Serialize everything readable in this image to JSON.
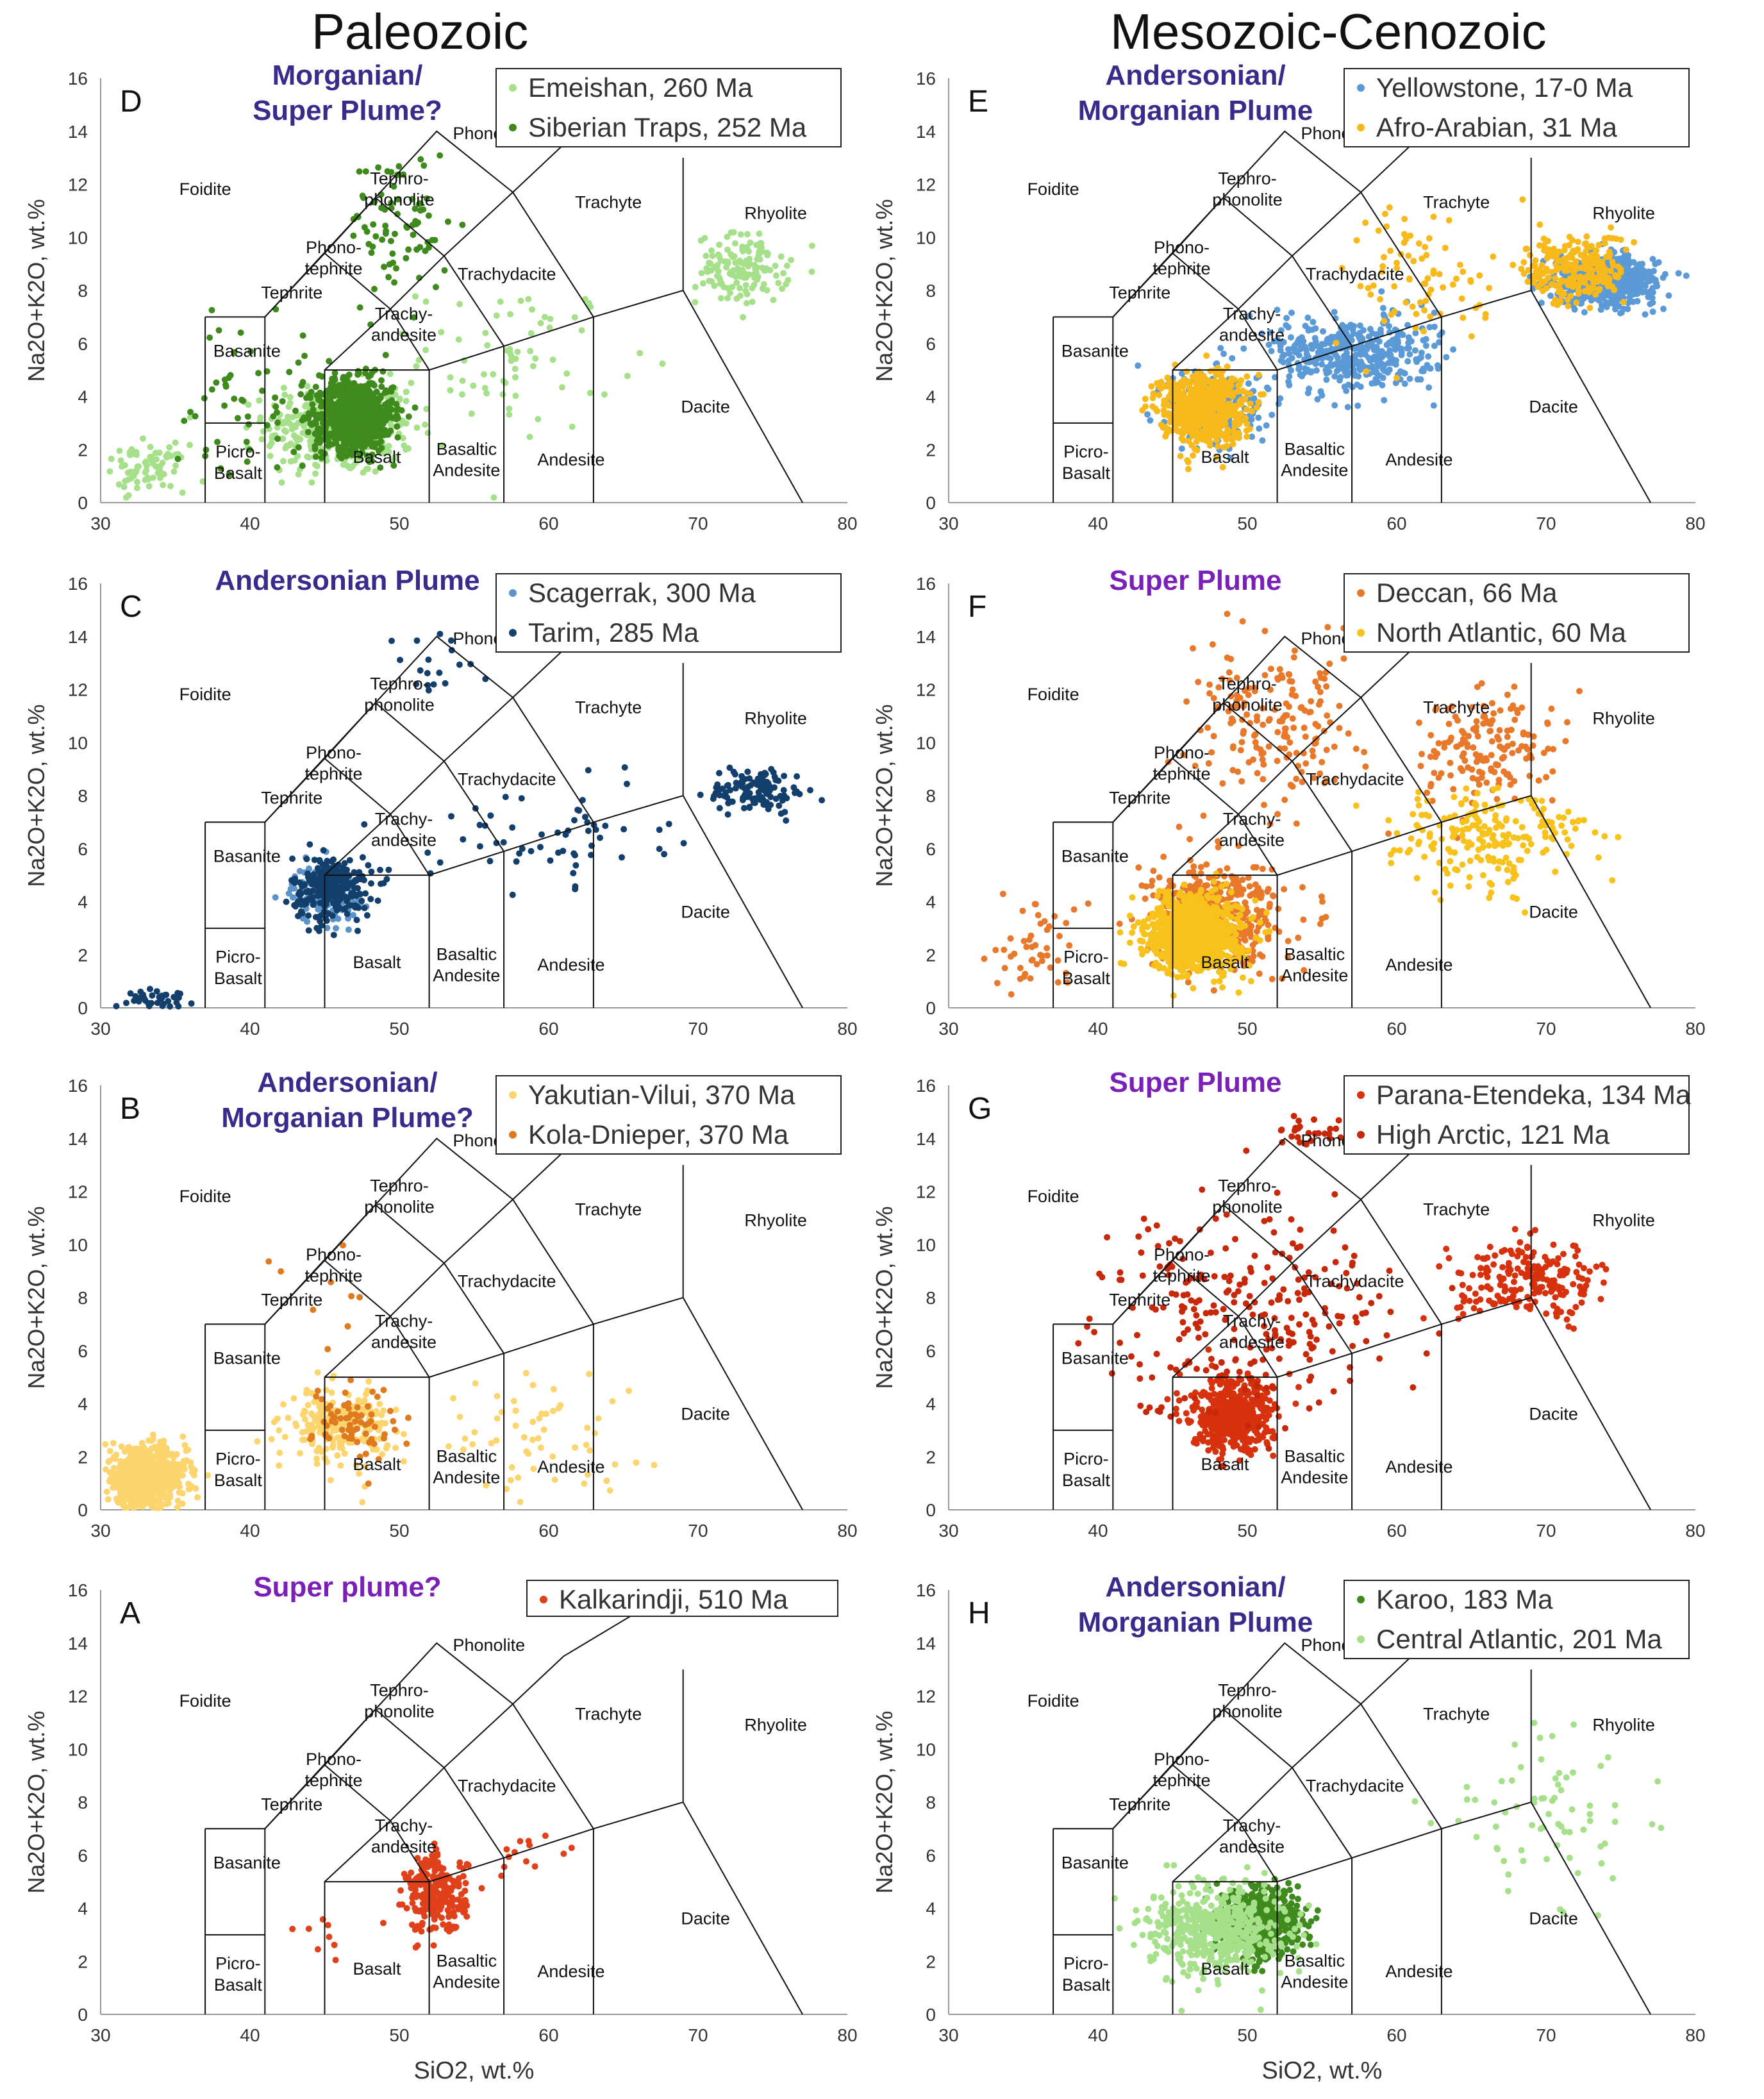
{
  "column_titles": {
    "left": "Paleozoic",
    "right": "Mesozoic-Cenozoic"
  },
  "axes": {
    "xlabel": "SiO2, wt.%",
    "ylabel": "Na2O+K2O, wt.%",
    "xlim": [
      30,
      80
    ],
    "ylim": [
      0,
      16
    ],
    "xticks": [
      30,
      40,
      50,
      60,
      70,
      80
    ],
    "yticks": [
      0,
      2,
      4,
      6,
      8,
      10,
      12,
      14,
      16
    ]
  },
  "tas_fields": {
    "foidite": "Foidite",
    "phonolite": "Phonolite",
    "tephrophonolite_1": "Tephro-",
    "tephrophonolite_2": "phonolite",
    "phonotephrite_1": "Phono-",
    "phonotephrite_2": "tephrite",
    "tephrite": "Tephrite",
    "basanite": "Basanite",
    "trachyandesite_1": "Trachy-",
    "trachyandesite_2": "andesite",
    "trachydacite": "Trachydacite",
    "trachyte": "Trachyte",
    "rhyolite": "Rhyolite",
    "dacite": "Dacite",
    "andesite": "Andesite",
    "basaltic_andesite_1": "Basaltic",
    "basaltic_andesite_2": "Andesite",
    "basalt": "Basalt",
    "picrobasalt_1": "Picro-",
    "picrobasalt_2": "Basalt"
  },
  "chart_data": [
    {
      "panel": "D",
      "type": "scatter",
      "plume_label": [
        "Morganian/",
        "Super Plume?"
      ],
      "plume_color": "#3a2a8c",
      "series": [
        {
          "name": "Emeishan, 260 Ma",
          "color": "#a6e08a",
          "clusters": [
            {
              "x": 46,
              "y": 2.8,
              "sx": 4.5,
              "sy": 1.6,
              "n": 380
            },
            {
              "x": 33,
              "y": 1.3,
              "sx": 2.5,
              "sy": 0.8,
              "n": 80
            },
            {
              "x": 73,
              "y": 8.8,
              "sx": 2.8,
              "sy": 1.2,
              "n": 140
            },
            {
              "x": 58,
              "y": 5.5,
              "sx": 6,
              "sy": 2.5,
              "n": 70
            }
          ]
        },
        {
          "name": "Siberian Traps, 252 Ma",
          "color": "#3f8a1c",
          "clusters": [
            {
              "x": 47,
              "y": 3.3,
              "sx": 2.3,
              "sy": 1.2,
              "n": 900
            },
            {
              "x": 50,
              "y": 10.5,
              "sx": 3,
              "sy": 2.6,
              "n": 80
            },
            {
              "x": 40,
              "y": 4,
              "sx": 5,
              "sy": 2.5,
              "n": 60
            }
          ]
        }
      ]
    },
    {
      "panel": "C",
      "type": "scatter",
      "plume_label": [
        "Andersonian Plume"
      ],
      "plume_color": "#3a2a8c",
      "series": [
        {
          "name": "Scagerrak, 300 Ma",
          "color": "#5b94c9",
          "clusters": [
            {
              "x": 45,
              "y": 4.3,
              "sx": 2,
              "sy": 1,
              "n": 160
            }
          ]
        },
        {
          "name": "Tarim, 285 Ma",
          "color": "#123f6b",
          "clusters": [
            {
              "x": 45.5,
              "y": 4.5,
              "sx": 2.4,
              "sy": 1.1,
              "n": 260
            },
            {
              "x": 34,
              "y": 0.35,
              "sx": 2,
              "sy": 0.3,
              "n": 40
            },
            {
              "x": 74,
              "y": 8.2,
              "sx": 3,
              "sy": 0.8,
              "n": 120
            },
            {
              "x": 60,
              "y": 6.5,
              "sx": 7,
              "sy": 1.6,
              "n": 60
            },
            {
              "x": 52,
              "y": 12.5,
              "sx": 3,
              "sy": 1.6,
              "n": 18
            }
          ]
        }
      ]
    },
    {
      "panel": "B",
      "type": "scatter",
      "plume_label": [
        "Andersonian/",
        "Morganian Plume?"
      ],
      "plume_color": "#3a2a8c",
      "series": [
        {
          "name": "Yakutian-Vilui, 370 Ma",
          "color": "#fcd56e",
          "clusters": [
            {
              "x": 33,
              "y": 1.2,
              "sx": 2.5,
              "sy": 1,
              "n": 800
            },
            {
              "x": 46,
              "y": 3.2,
              "sx": 3,
              "sy": 1.2,
              "n": 220
            },
            {
              "x": 58,
              "y": 3,
              "sx": 8,
              "sy": 2,
              "n": 60
            }
          ]
        },
        {
          "name": "Kola-Dnieper, 370 Ma",
          "color": "#e07a1f",
          "clusters": [
            {
              "x": 47,
              "y": 3.3,
              "sx": 2.5,
              "sy": 1.3,
              "n": 70
            },
            {
              "x": 46,
              "y": 8,
              "sx": 4,
              "sy": 2.5,
              "n": 10
            }
          ]
        }
      ]
    },
    {
      "panel": "A",
      "type": "scatter",
      "plume_label": [
        "Super plume?"
      ],
      "plume_color": "#7a1fb8",
      "series": [
        {
          "name": "Kalkarindji, 510 Ma",
          "color": "#e0401a",
          "clusters": [
            {
              "x": 52.5,
              "y": 4.5,
              "sx": 1.8,
              "sy": 1.3,
              "n": 260
            },
            {
              "x": 59,
              "y": 6.3,
              "sx": 3,
              "sy": 1,
              "n": 14
            },
            {
              "x": 45,
              "y": 2.8,
              "sx": 2,
              "sy": 1,
              "n": 8
            }
          ]
        }
      ]
    },
    {
      "panel": "E",
      "type": "scatter",
      "plume_label": [
        "Andersonian/",
        "Morganian Plume"
      ],
      "plume_color": "#3a2a8c",
      "series": [
        {
          "name": "Yellowstone, 17-0 Ma",
          "color": "#5b9ad6",
          "clusters": [
            {
              "x": 74,
              "y": 8.4,
              "sx": 3,
              "sy": 0.8,
              "n": 650
            },
            {
              "x": 57,
              "y": 5.6,
              "sx": 5,
              "sy": 1.3,
              "n": 420
            },
            {
              "x": 48,
              "y": 3.5,
              "sx": 3,
              "sy": 1.4,
              "n": 200
            }
          ]
        },
        {
          "name": "Afro-Arabian, 31 Ma",
          "color": "#f7b91b",
          "clusters": [
            {
              "x": 47,
              "y": 3.6,
              "sx": 2.5,
              "sy": 1.2,
              "n": 650
            },
            {
              "x": 72,
              "y": 8.8,
              "sx": 3,
              "sy": 1.2,
              "n": 230
            },
            {
              "x": 62,
              "y": 8.5,
              "sx": 5,
              "sy": 2.5,
              "n": 80
            }
          ]
        }
      ]
    },
    {
      "panel": "F",
      "type": "scatter",
      "plume_label": [
        "Super Plume"
      ],
      "plume_color": "#7a1fb8",
      "series": [
        {
          "name": "Deccan, 66 Ma",
          "color": "#e8782a",
          "clusters": [
            {
              "x": 48,
              "y": 3.5,
              "sx": 4,
              "sy": 1.8,
              "n": 420
            },
            {
              "x": 52,
              "y": 10.5,
              "sx": 5,
              "sy": 2.5,
              "n": 180
            },
            {
              "x": 66,
              "y": 9.8,
              "sx": 4,
              "sy": 2,
              "n": 160
            },
            {
              "x": 36,
              "y": 2,
              "sx": 3,
              "sy": 1.8,
              "n": 50
            }
          ]
        },
        {
          "name": "North Atlantic, 60 Ma",
          "color": "#f7c21b",
          "clusters": [
            {
              "x": 46.5,
              "y": 2.8,
              "sx": 2.8,
              "sy": 1.3,
              "n": 900
            },
            {
              "x": 66,
              "y": 6.5,
              "sx": 6,
              "sy": 1.8,
              "n": 200
            }
          ]
        }
      ]
    },
    {
      "panel": "G",
      "type": "scatter",
      "plume_label": [
        "Super Plume"
      ],
      "plume_color": "#7a1fb8",
      "series": [
        {
          "name": "Parana-Etendeka, 134 Ma",
          "color": "#d7310e",
          "clusters": [
            {
              "x": 49,
              "y": 3.5,
              "sx": 2.5,
              "sy": 1.2,
              "n": 480
            },
            {
              "x": 69,
              "y": 8.6,
              "sx": 4.5,
              "sy": 1.3,
              "n": 200
            }
          ]
        },
        {
          "name": "High Arctic, 121 Ma",
          "color": "#c8280a",
          "clusters": [
            {
              "x": 50,
              "y": 7.5,
              "sx": 9,
              "sy": 3.5,
              "n": 260
            },
            {
              "x": 54,
              "y": 14.5,
              "sx": 2,
              "sy": 1,
              "n": 25
            }
          ]
        }
      ]
    },
    {
      "panel": "H",
      "type": "scatter",
      "plume_label": [
        "Andersonian/",
        "Morganian Plume"
      ],
      "plume_color": "#3a2a8c",
      "series": [
        {
          "name": "Karoo, 183 Ma",
          "color": "#3f8a1c",
          "clusters": [
            {
              "x": 51,
              "y": 3.5,
              "sx": 2.3,
              "sy": 1.1,
              "n": 650
            }
          ]
        },
        {
          "name": "Central Atlantic, 201 Ma",
          "color": "#a6e08a",
          "clusters": [
            {
              "x": 48,
              "y": 3.2,
              "sx": 4,
              "sy": 1.5,
              "n": 500
            },
            {
              "x": 70,
              "y": 7.5,
              "sx": 6,
              "sy": 3,
              "n": 70
            }
          ]
        }
      ]
    }
  ]
}
